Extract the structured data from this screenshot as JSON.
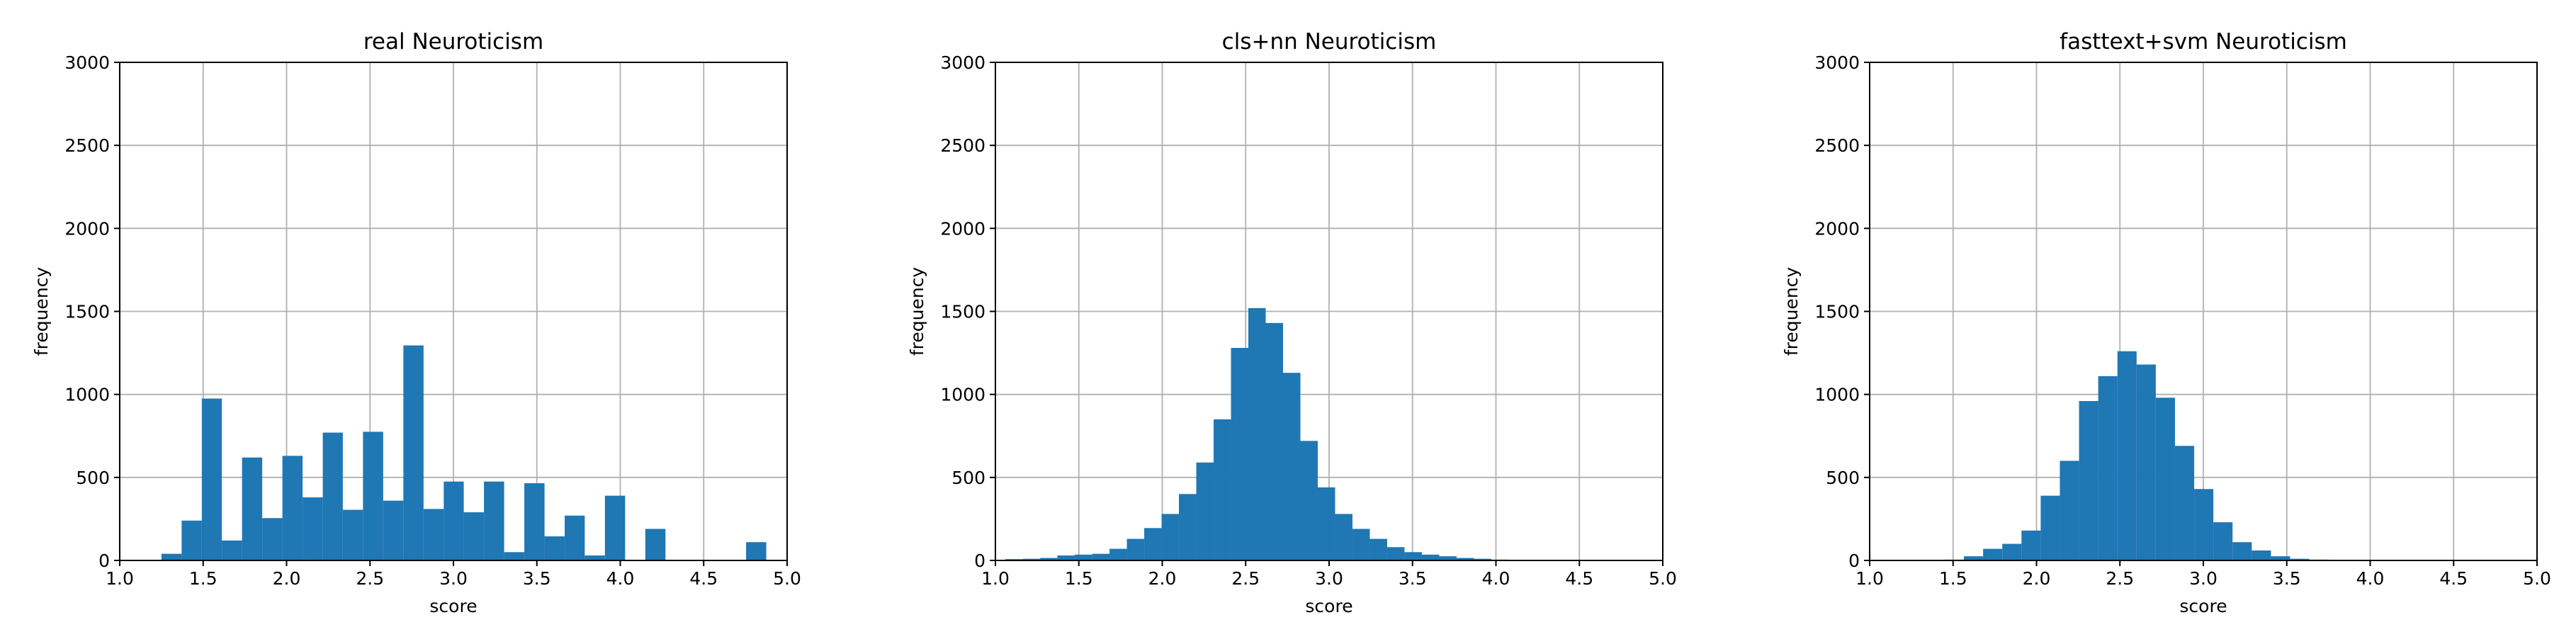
{
  "chart_data": [
    {
      "type": "histogram",
      "title": "real Neuroticism",
      "xlabel": "score",
      "ylabel": "frequency",
      "color": "#1f77b4",
      "grid": true,
      "bins": [
        1.25,
        1.371,
        1.492,
        1.612,
        1.733,
        1.854,
        1.975,
        2.096,
        2.217,
        2.337,
        2.458,
        2.579,
        2.7,
        2.821,
        2.942,
        3.062,
        3.183,
        3.304,
        3.425,
        3.546,
        3.667,
        3.787,
        3.908,
        4.029,
        4.15,
        4.271,
        4.392,
        4.512,
        4.633,
        4.754,
        4.875
      ],
      "values": [
        40,
        240,
        975,
        120,
        620,
        255,
        630,
        380,
        770,
        305,
        775,
        360,
        1295,
        310,
        475,
        290,
        475,
        50,
        465,
        145,
        270,
        30,
        390,
        0,
        190,
        0,
        0,
        0,
        0,
        110
      ],
      "xlim": [
        1.0,
        5.0
      ],
      "ylim": [
        0,
        3000
      ],
      "xticks": [
        {
          "value": 1.0,
          "label": "1.0"
        },
        1.5,
        {
          "value": 2.0,
          "label": "2.0"
        },
        2.5,
        {
          "value": 3.0,
          "label": "3.0"
        },
        3.5,
        {
          "value": 4.0,
          "label": "4.0"
        },
        4.5,
        {
          "value": 5.0,
          "label": "5.0"
        }
      ],
      "yticks": [
        0,
        500,
        1000,
        1500,
        2000,
        2500,
        3000
      ]
    },
    {
      "type": "histogram",
      "title": "cls+nn Neuroticism",
      "xlabel": "score",
      "ylabel": "frequency",
      "color": "#1f77b4",
      "grid": true,
      "bins": [
        1.06,
        1.164,
        1.268,
        1.372,
        1.476,
        1.58,
        1.684,
        1.788,
        1.892,
        1.996,
        2.1,
        2.204,
        2.308,
        2.412,
        2.516,
        2.62,
        2.724,
        2.828,
        2.932,
        3.036,
        3.14,
        3.244,
        3.348,
        3.452,
        3.556,
        3.66,
        3.764,
        3.868,
        3.972,
        4.076,
        4.18
      ],
      "values": [
        8,
        10,
        15,
        30,
        35,
        40,
        70,
        130,
        195,
        280,
        400,
        590,
        850,
        1280,
        1520,
        1430,
        1130,
        720,
        440,
        280,
        190,
        130,
        80,
        50,
        35,
        25,
        15,
        10,
        5,
        3
      ],
      "xlim": [
        1.0,
        5.0
      ],
      "ylim": [
        0,
        3000
      ],
      "xticks": [
        {
          "value": 1.0,
          "label": "1.0"
        },
        1.5,
        {
          "value": 2.0,
          "label": "2.0"
        },
        2.5,
        {
          "value": 3.0,
          "label": "3.0"
        },
        3.5,
        {
          "value": 4.0,
          "label": "4.0"
        },
        4.5,
        {
          "value": 5.0,
          "label": "5.0"
        }
      ],
      "yticks": [
        0,
        500,
        1000,
        1500,
        2000,
        2500,
        3000
      ]
    },
    {
      "type": "histogram",
      "title": "fasttext+svm Neuroticism",
      "xlabel": "score",
      "ylabel": "frequency",
      "color": "#1f77b4",
      "grid": true,
      "bins": [
        1.45,
        1.565,
        1.68,
        1.795,
        1.91,
        2.025,
        2.14,
        2.255,
        2.37,
        2.485,
        2.6,
        2.715,
        2.83,
        2.945,
        3.06,
        3.175,
        3.29,
        3.405,
        3.52,
        3.635,
        3.75
      ],
      "values": [
        5,
        25,
        70,
        100,
        180,
        390,
        600,
        960,
        1110,
        1260,
        1180,
        980,
        690,
        430,
        230,
        110,
        60,
        25,
        10,
        5
      ],
      "xlim": [
        1.0,
        5.0
      ],
      "ylim": [
        0,
        3000
      ],
      "xticks": [
        {
          "value": 1.0,
          "label": "1.0"
        },
        1.5,
        {
          "value": 2.0,
          "label": "2.0"
        },
        2.5,
        {
          "value": 3.0,
          "label": "3.0"
        },
        3.5,
        {
          "value": 4.0,
          "label": "4.0"
        },
        4.5,
        {
          "value": 5.0,
          "label": "5.0"
        }
      ],
      "yticks": [
        0,
        500,
        1000,
        1500,
        2000,
        2500,
        3000
      ]
    }
  ]
}
